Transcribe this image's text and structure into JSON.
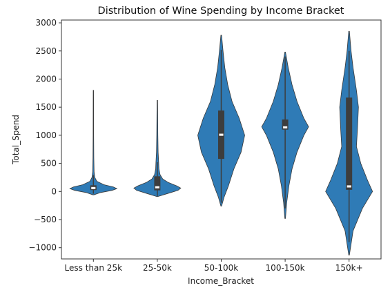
{
  "chart_data": {
    "type": "violin",
    "title": "Distribution of Wine Spending by Income Bracket",
    "xlabel": "Income_Bracket",
    "ylabel": "Total_Spend",
    "ylim": [
      -1200,
      3050
    ],
    "yticks": [
      -1000,
      -500,
      0,
      500,
      1000,
      1500,
      2000,
      2500,
      3000
    ],
    "grid": false,
    "legend": "none",
    "colors": {
      "violin_fill": "#2f7bb6",
      "box": "#3d3d3d",
      "median": "#ffffff",
      "axis": "#333333"
    },
    "categories": [
      "Less than 25k",
      "25-50k",
      "50-100k",
      "100-150k",
      "150k+"
    ],
    "violins": [
      {
        "category": "Less than 25k",
        "min": -60,
        "max": 1800,
        "q1": 25,
        "median": 60,
        "q3": 110,
        "whisker_low": -40,
        "whisker_high": 290,
        "density": [
          [
            -60,
            0.02
          ],
          [
            -20,
            0.3
          ],
          [
            20,
            0.8
          ],
          [
            50,
            1.0
          ],
          [
            80,
            0.85
          ],
          [
            120,
            0.45
          ],
          [
            180,
            0.15
          ],
          [
            250,
            0.06
          ],
          [
            350,
            0.03
          ],
          [
            600,
            0.018
          ],
          [
            1000,
            0.012
          ],
          [
            1400,
            0.01
          ],
          [
            1800,
            0.008
          ]
        ]
      },
      {
        "category": "25-50k",
        "min": -90,
        "max": 1620,
        "q1": 20,
        "median": 75,
        "q3": 270,
        "whisker_low": -80,
        "whisker_high": 520,
        "density": [
          [
            -90,
            0.02
          ],
          [
            -40,
            0.35
          ],
          [
            20,
            0.75
          ],
          [
            60,
            0.85
          ],
          [
            100,
            0.7
          ],
          [
            160,
            0.4
          ],
          [
            220,
            0.2
          ],
          [
            300,
            0.1
          ],
          [
            400,
            0.06
          ],
          [
            520,
            0.05
          ],
          [
            700,
            0.03
          ],
          [
            1000,
            0.02
          ],
          [
            1300,
            0.015
          ],
          [
            1620,
            0.01
          ]
        ]
      },
      {
        "category": "50-100k",
        "min": -260,
        "max": 2780,
        "q1": 580,
        "median": 1010,
        "q3": 1440,
        "whisker_low": -200,
        "whisker_high": 2520,
        "density": [
          [
            -260,
            0.01
          ],
          [
            -100,
            0.08
          ],
          [
            100,
            0.2
          ],
          [
            400,
            0.35
          ],
          [
            700,
            0.55
          ],
          [
            1000,
            0.65
          ],
          [
            1300,
            0.5
          ],
          [
            1600,
            0.3
          ],
          [
            1900,
            0.18
          ],
          [
            2200,
            0.1
          ],
          [
            2500,
            0.05
          ],
          [
            2780,
            0.01
          ]
        ]
      },
      {
        "category": "100-150k",
        "min": -480,
        "max": 2480,
        "q1": 1100,
        "median": 1140,
        "q3": 1280,
        "whisker_low": -300,
        "whisker_high": 2400,
        "density": [
          [
            -480,
            0.01
          ],
          [
            -200,
            0.05
          ],
          [
            100,
            0.12
          ],
          [
            400,
            0.22
          ],
          [
            700,
            0.38
          ],
          [
            1000,
            0.6
          ],
          [
            1150,
            0.75
          ],
          [
            1300,
            0.6
          ],
          [
            1600,
            0.38
          ],
          [
            1900,
            0.22
          ],
          [
            2200,
            0.1
          ],
          [
            2480,
            0.01
          ]
        ]
      },
      {
        "category": "150k+",
        "min": -1130,
        "max": 2850,
        "q1": 30,
        "median": 90,
        "q3": 1670,
        "whisker_low": -900,
        "whisker_high": 2500,
        "density": [
          [
            -1130,
            0.01
          ],
          [
            -700,
            0.12
          ],
          [
            -300,
            0.4
          ],
          [
            0,
            0.7
          ],
          [
            200,
            0.55
          ],
          [
            500,
            0.35
          ],
          [
            800,
            0.22
          ],
          [
            1100,
            0.25
          ],
          [
            1500,
            0.28
          ],
          [
            1800,
            0.22
          ],
          [
            2200,
            0.12
          ],
          [
            2500,
            0.06
          ],
          [
            2850,
            0.01
          ]
        ]
      }
    ]
  }
}
